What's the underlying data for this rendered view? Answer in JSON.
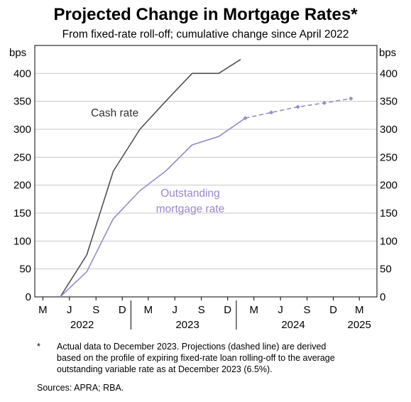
{
  "chart_data": {
    "type": "line",
    "title": "Projected Change in Mortgage Rates*",
    "subtitle": "From fixed-rate roll-off; cumulative change since April 2022",
    "ylabel_left": "bps",
    "ylabel_right": "bps",
    "ylim": [
      0,
      450
    ],
    "yticks": [
      0,
      50,
      100,
      150,
      200,
      250,
      300,
      350,
      400
    ],
    "xlim": [
      "2022-02-01",
      "2025-05-01"
    ],
    "xticks": [
      {
        "label": "M",
        "date": "2022-03-01"
      },
      {
        "label": "J",
        "date": "2022-06-01"
      },
      {
        "label": "S",
        "date": "2022-09-01"
      },
      {
        "label": "D",
        "date": "2022-12-01"
      },
      {
        "label": "M",
        "date": "2023-03-01"
      },
      {
        "label": "J",
        "date": "2023-06-01"
      },
      {
        "label": "S",
        "date": "2023-09-01"
      },
      {
        "label": "D",
        "date": "2023-12-01"
      },
      {
        "label": "M",
        "date": "2024-03-01"
      },
      {
        "label": "J",
        "date": "2024-06-01"
      },
      {
        "label": "S",
        "date": "2024-09-01"
      },
      {
        "label": "D",
        "date": "2024-12-01"
      },
      {
        "label": "M",
        "date": "2025-03-01"
      }
    ],
    "year_labels": [
      {
        "label": "2022",
        "date": "2022-07-15"
      },
      {
        "label": "2023",
        "date": "2023-07-15"
      },
      {
        "label": "2024",
        "date": "2024-07-15"
      },
      {
        "label": "2025",
        "date": "2025-03-01"
      }
    ],
    "grid": "horizontal",
    "series": [
      {
        "name": "Cash rate",
        "color": "#505050",
        "style": "solid",
        "points": [
          {
            "x": "2022-04-30",
            "y": 0
          },
          {
            "x": "2022-07-31",
            "y": 75
          },
          {
            "x": "2022-10-31",
            "y": 225
          },
          {
            "x": "2023-01-31",
            "y": 300
          },
          {
            "x": "2023-04-30",
            "y": 350
          },
          {
            "x": "2023-07-31",
            "y": 400
          },
          {
            "x": "2023-10-31",
            "y": 400
          },
          {
            "x": "2024-01-15",
            "y": 425
          }
        ]
      },
      {
        "name": "Outstanding mortgage rate",
        "color": "#9988cc",
        "style": "solid",
        "points": [
          {
            "x": "2022-04-30",
            "y": 0
          },
          {
            "x": "2022-07-31",
            "y": 45
          },
          {
            "x": "2022-10-31",
            "y": 140
          },
          {
            "x": "2023-01-31",
            "y": 190
          },
          {
            "x": "2023-04-30",
            "y": 225
          },
          {
            "x": "2023-07-31",
            "y": 272
          },
          {
            "x": "2023-10-31",
            "y": 287
          },
          {
            "x": "2024-01-31",
            "y": 320
          }
        ]
      },
      {
        "name": "Outstanding mortgage rate projection",
        "color": "#9988cc",
        "style": "dashed",
        "markers": true,
        "points": [
          {
            "x": "2024-01-31",
            "y": 320
          },
          {
            "x": "2024-04-30",
            "y": 330
          },
          {
            "x": "2024-07-31",
            "y": 340
          },
          {
            "x": "2024-10-31",
            "y": 347
          },
          {
            "x": "2025-01-31",
            "y": 355
          }
        ]
      }
    ],
    "annotations": [
      {
        "text": "Cash rate",
        "color": "#333333"
      },
      {
        "lines": [
          "Outstanding",
          "mortgage rate"
        ],
        "color": "#9988cc"
      }
    ],
    "footnotes": {
      "marker": "*",
      "lines": [
        "Actual data to December 2023. Projections (dashed line) are derived",
        "based on the profile of expiring fixed-rate loan rolling-off to the average",
        "outstanding variable rate as at December 2023 (6.5%)."
      ],
      "sources": "Sources: APRA; RBA."
    }
  }
}
